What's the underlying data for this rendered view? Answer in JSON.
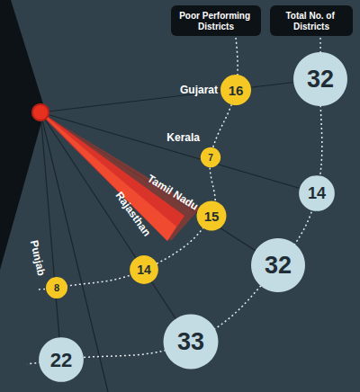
{
  "chart_data": {
    "type": "bubble",
    "categories": [
      "Gujarat",
      "Kerala",
      "Tamil Nadu",
      "Rajasthan",
      "Punjab"
    ],
    "series": [
      {
        "name": "Poor Performing Districts",
        "color": "#f6c823",
        "values": [
          16,
          7,
          15,
          14,
          8
        ]
      },
      {
        "name": "Total No. of Districts",
        "color": "#c3dbe2",
        "values": [
          32,
          14,
          32,
          33,
          22
        ]
      }
    ],
    "data_labels": true
  }
}
